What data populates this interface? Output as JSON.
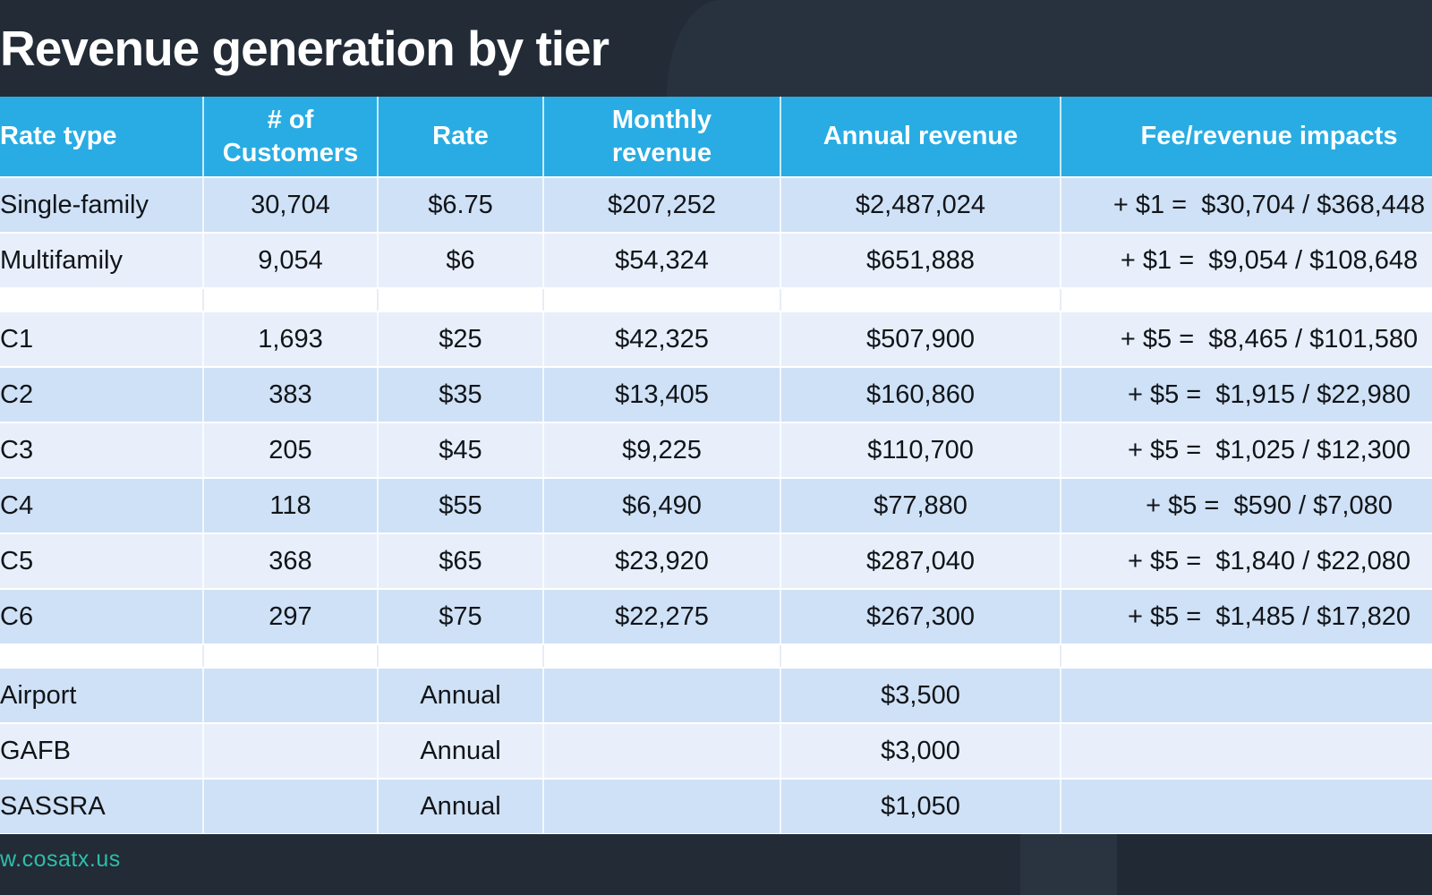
{
  "slide": {
    "title": "Revenue generation by tier",
    "footer_link": "w.cosatx.us"
  },
  "colors": {
    "background_dark": "#222B36",
    "header_blue": "#29ACE3",
    "row_dark_blue": "#CFE1F6",
    "row_light_blue": "#E8EFFB",
    "footer_link_teal": "#2EBEA9",
    "title_text": "#FFFFFF"
  },
  "table": {
    "columns": [
      {
        "id": "rate_type",
        "label": "Rate type"
      },
      {
        "id": "customers",
        "label": "# of\nCustomers"
      },
      {
        "id": "rate",
        "label": "Rate"
      },
      {
        "id": "monthly",
        "label": "Monthly\nrevenue"
      },
      {
        "id": "annual",
        "label": "Annual revenue"
      },
      {
        "id": "impacts",
        "label": "Fee/revenue impacts"
      }
    ],
    "rows": [
      {
        "type": "data",
        "shade": "dark",
        "cells": [
          "Single-family",
          "30,704",
          "$6.75",
          "$207,252",
          "$2,487,024",
          "+ $1 =  $30,704 / $368,448"
        ]
      },
      {
        "type": "data",
        "shade": "light",
        "cells": [
          "Multifamily",
          "9,054",
          "$6",
          "$54,324",
          "$651,888",
          "+ $1 =  $9,054 / $108,648"
        ]
      },
      {
        "type": "spacer",
        "cells": [
          "",
          "",
          "",
          "",
          "",
          ""
        ]
      },
      {
        "type": "data",
        "shade": "light",
        "cells": [
          "C1",
          "1,693",
          "$25",
          "$42,325",
          "$507,900",
          "+ $5 =  $8,465 / $101,580"
        ]
      },
      {
        "type": "data",
        "shade": "dark",
        "cells": [
          "C2",
          "383",
          "$35",
          "$13,405",
          "$160,860",
          "+ $5 =  $1,915 / $22,980"
        ]
      },
      {
        "type": "data",
        "shade": "light",
        "cells": [
          "C3",
          "205",
          "$45",
          "$9,225",
          "$110,700",
          "+ $5 =  $1,025 / $12,300"
        ]
      },
      {
        "type": "data",
        "shade": "dark",
        "cells": [
          "C4",
          "118",
          "$55",
          "$6,490",
          "$77,880",
          "+ $5 =  $590 / $7,080"
        ]
      },
      {
        "type": "data",
        "shade": "light",
        "cells": [
          "C5",
          "368",
          "$65",
          "$23,920",
          "$287,040",
          "+ $5 =  $1,840 / $22,080"
        ]
      },
      {
        "type": "data",
        "shade": "dark",
        "cells": [
          "C6",
          "297",
          "$75",
          "$22,275",
          "$267,300",
          "+ $5 =  $1,485 / $17,820"
        ]
      },
      {
        "type": "spacer",
        "cells": [
          "",
          "",
          "",
          "",
          "",
          ""
        ]
      },
      {
        "type": "data",
        "shade": "dark",
        "cells": [
          "Airport",
          "",
          "Annual",
          "",
          "$3,500",
          ""
        ]
      },
      {
        "type": "data",
        "shade": "light",
        "cells": [
          "GAFB",
          "",
          "Annual",
          "",
          "$3,000",
          ""
        ]
      },
      {
        "type": "data",
        "shade": "dark",
        "cells": [
          "SASSRA",
          "",
          "Annual",
          "",
          "$1,050",
          ""
        ]
      }
    ]
  }
}
